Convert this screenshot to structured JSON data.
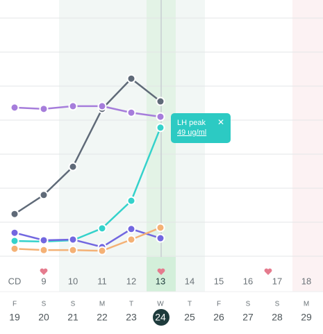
{
  "chart_data": {
    "type": "line",
    "categories": [
      "CD",
      "9",
      "10",
      "11",
      "12",
      "13",
      "14",
      "15",
      "16",
      "17",
      "18"
    ],
    "series": [
      {
        "color": "#5f6a78",
        "values": [
          1.24,
          1.8,
          2.63,
          4.33,
          5.22,
          4.55,
          null,
          null,
          null,
          null,
          null
        ]
      },
      {
        "color": "#a67ddb",
        "values": [
          4.37,
          4.33,
          4.41,
          4.41,
          4.22,
          4.1,
          null,
          null,
          null,
          null,
          null
        ]
      },
      {
        "color": "#34d2cb",
        "values": [
          0.45,
          0.43,
          0.47,
          0.82,
          1.63,
          3.78,
          null,
          null,
          null,
          null,
          null
        ]
      },
      {
        "color": "#7267e0",
        "values": [
          0.69,
          0.47,
          0.49,
          0.27,
          0.8,
          0.53,
          null,
          null,
          null,
          null,
          null
        ]
      },
      {
        "color": "#f4b175",
        "values": [
          0.22,
          0.18,
          0.18,
          0.16,
          0.49,
          0.84,
          null,
          null,
          null,
          null,
          null
        ]
      }
    ],
    "ylim": [
      0,
      7.5
    ],
    "yticks": [
      0,
      1,
      2,
      3,
      4,
      5,
      6,
      7
    ],
    "grid": true
  },
  "tooltip": {
    "title": "LH peak",
    "value": "49 ug/ml",
    "close": "✕"
  },
  "calendar": {
    "weekdays": [
      "F",
      "S",
      "S",
      "M",
      "T",
      "W",
      "T",
      "F",
      "S",
      "S",
      "M"
    ],
    "days": [
      "19",
      "20",
      "21",
      "22",
      "23",
      "24",
      "25",
      "26",
      "27",
      "28",
      "29"
    ]
  }
}
